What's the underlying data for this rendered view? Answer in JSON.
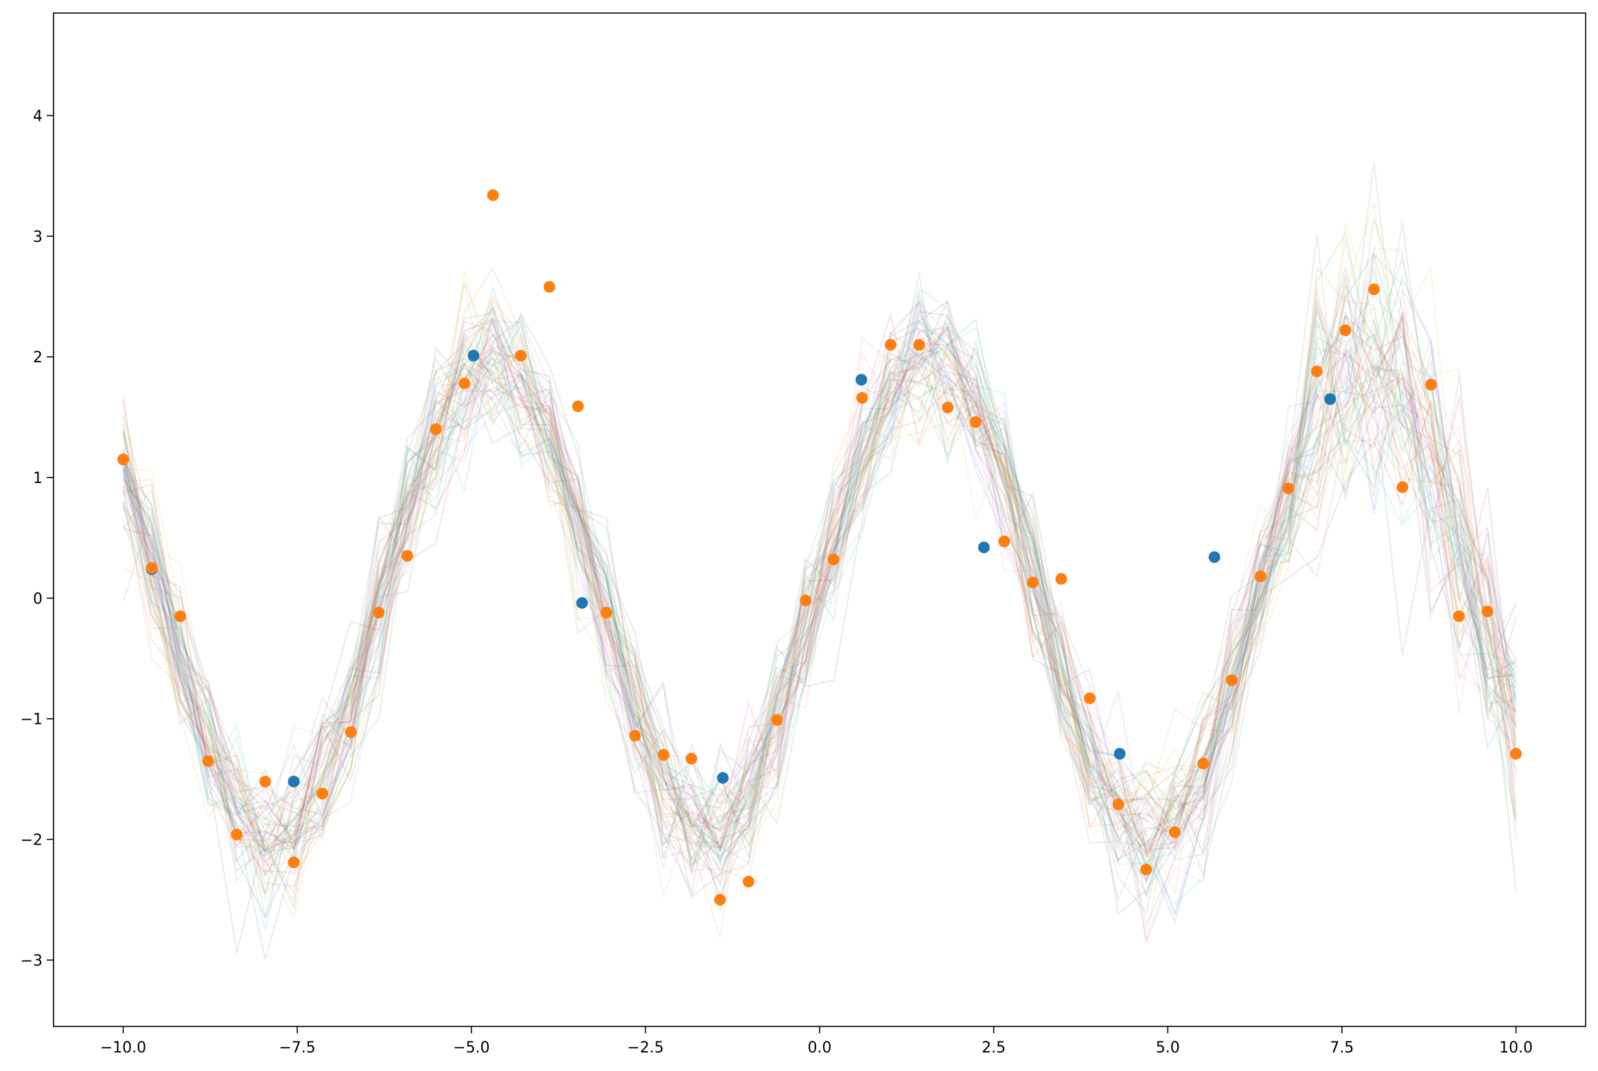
{
  "chart_data": {
    "type": "scatter",
    "title": "",
    "xlabel": "",
    "ylabel": "",
    "xlim": [
      -11.0,
      11.0
    ],
    "ylim": [
      -3.55,
      4.85
    ],
    "grid": false,
    "legend": "none",
    "x_ticks": [
      {
        "value": -10.0,
        "label": "−10.0"
      },
      {
        "value": -7.5,
        "label": "−7.5"
      },
      {
        "value": -5.0,
        "label": "−5.0"
      },
      {
        "value": -2.5,
        "label": "−2.5"
      },
      {
        "value": 0.0,
        "label": "0.0"
      },
      {
        "value": 2.5,
        "label": "2.5"
      },
      {
        "value": 5.0,
        "label": "5.0"
      },
      {
        "value": 7.5,
        "label": "7.5"
      },
      {
        "value": 10.0,
        "label": "10.0"
      }
    ],
    "y_ticks": [
      {
        "value": -3,
        "label": "−3"
      },
      {
        "value": -2,
        "label": "−2"
      },
      {
        "value": -1,
        "label": "−1"
      },
      {
        "value": 0,
        "label": "0"
      },
      {
        "value": 1,
        "label": "1"
      },
      {
        "value": 2,
        "label": "2"
      },
      {
        "value": 3,
        "label": "3"
      },
      {
        "value": 4,
        "label": "4"
      }
    ],
    "sample_curves": {
      "count": 60,
      "num_points": 50,
      "x_range": [
        -10.0,
        10.0
      ],
      "mean_function": "2*sin(x)",
      "alpha": 0.12,
      "colors": [
        "#1f77b4",
        "#ff7f0e",
        "#2ca02c",
        "#d62728",
        "#9467bd",
        "#8c564b",
        "#e377c2",
        "#7f7f7f",
        "#bcbd22",
        "#17becf"
      ]
    },
    "series": [
      {
        "color": "#1f77b4",
        "points": [
          [
            -9.59,
            0.24
          ],
          [
            -7.55,
            -1.52
          ],
          [
            -4.97,
            2.01
          ],
          [
            -3.41,
            -0.04
          ],
          [
            -1.39,
            -1.49
          ],
          [
            0.6,
            1.81
          ],
          [
            2.36,
            0.42
          ],
          [
            4.31,
            -1.29
          ],
          [
            5.67,
            0.34
          ],
          [
            7.33,
            1.65
          ]
        ]
      },
      {
        "color": "#ff7f0e",
        "points": [
          [
            -10.0,
            1.15
          ],
          [
            -9.59,
            0.25
          ],
          [
            -9.18,
            -0.15
          ],
          [
            -8.78,
            -1.35
          ],
          [
            -8.37,
            -1.96
          ],
          [
            -7.96,
            -1.52
          ],
          [
            -7.55,
            -2.19
          ],
          [
            -7.14,
            -1.62
          ],
          [
            -6.73,
            -1.11
          ],
          [
            -6.33,
            -0.12
          ],
          [
            -5.92,
            0.35
          ],
          [
            -5.51,
            1.4
          ],
          [
            -5.1,
            1.78
          ],
          [
            -4.69,
            3.34
          ],
          [
            -4.29,
            2.01
          ],
          [
            -3.88,
            2.58
          ],
          [
            -3.47,
            1.59
          ],
          [
            -3.06,
            -0.12
          ],
          [
            -2.65,
            -1.14
          ],
          [
            -2.24,
            -1.3
          ],
          [
            -1.84,
            -1.33
          ],
          [
            -1.43,
            -2.5
          ],
          [
            -1.02,
            -2.35
          ],
          [
            -0.61,
            -1.01
          ],
          [
            -0.2,
            -0.02
          ],
          [
            0.2,
            0.32
          ],
          [
            0.61,
            1.66
          ],
          [
            1.02,
            2.1
          ],
          [
            1.43,
            2.1
          ],
          [
            1.84,
            1.58
          ],
          [
            2.24,
            1.46
          ],
          [
            2.65,
            0.47
          ],
          [
            3.06,
            0.13
          ],
          [
            3.47,
            0.16
          ],
          [
            3.88,
            -0.83
          ],
          [
            4.29,
            -1.71
          ],
          [
            4.69,
            -2.25
          ],
          [
            5.1,
            -1.94
          ],
          [
            5.51,
            -1.37
          ],
          [
            5.92,
            -0.68
          ],
          [
            6.33,
            0.18
          ],
          [
            6.73,
            0.91
          ],
          [
            7.14,
            1.88
          ],
          [
            7.55,
            2.22
          ],
          [
            7.96,
            2.56
          ],
          [
            8.37,
            0.92
          ],
          [
            8.78,
            1.77
          ],
          [
            9.18,
            -0.15
          ],
          [
            9.59,
            -0.11
          ],
          [
            10.0,
            -1.29
          ]
        ]
      }
    ]
  }
}
